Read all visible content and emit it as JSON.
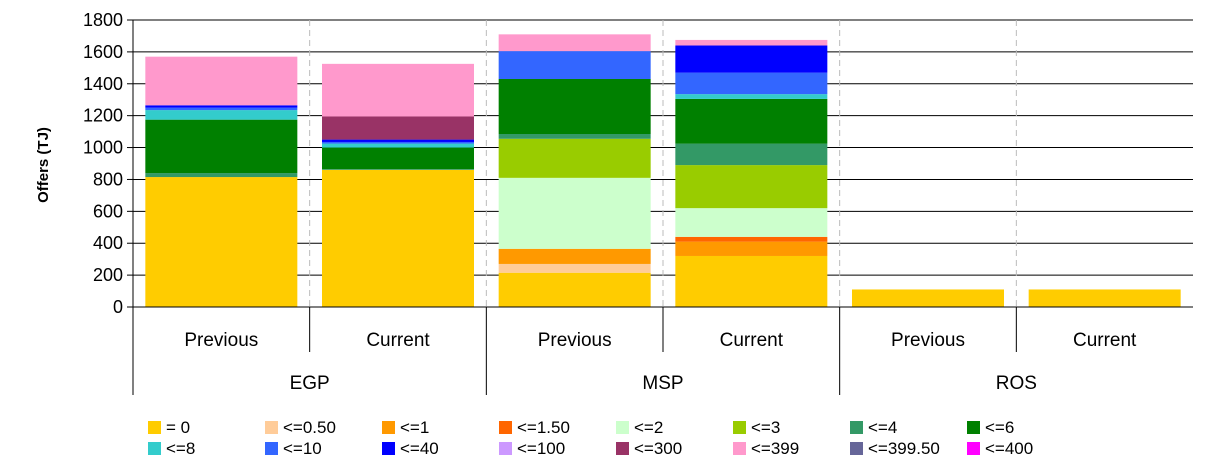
{
  "chart_data": {
    "type": "bar",
    "stacked": true,
    "ylabel": "Offers (TJ)",
    "xlabel": "",
    "ylim": [
      0,
      1800
    ],
    "yticks": [
      0,
      200,
      400,
      600,
      800,
      1000,
      1200,
      1400,
      1600,
      1800
    ],
    "grid": true,
    "legend_position": "bottom",
    "groups": [
      "EGP",
      "MSP",
      "ROS"
    ],
    "categories": [
      "Previous",
      "Current",
      "Previous",
      "Current",
      "Previous",
      "Current"
    ],
    "category_group": [
      0,
      0,
      1,
      1,
      2,
      2
    ],
    "series": [
      {
        "name": "= 0",
        "color": "#FFCC00",
        "values": [
          815,
          860,
          215,
          320,
          110,
          110
        ]
      },
      {
        "name": "<=0.50",
        "color": "#FFCC99",
        "values": [
          0,
          0,
          55,
          0,
          0,
          0
        ]
      },
      {
        "name": "<=1",
        "color": "#FF9900",
        "values": [
          0,
          0,
          95,
          90,
          0,
          0
        ]
      },
      {
        "name": "<=1.50",
        "color": "#FF6600",
        "values": [
          0,
          0,
          0,
          30,
          0,
          0
        ]
      },
      {
        "name": "<=2",
        "color": "#CCFFCC",
        "values": [
          0,
          0,
          445,
          180,
          0,
          0
        ]
      },
      {
        "name": "<=3",
        "color": "#99CC00",
        "values": [
          0,
          0,
          245,
          270,
          0,
          0
        ]
      },
      {
        "name": "<=4",
        "color": "#339966",
        "values": [
          25,
          5,
          30,
          135,
          0,
          0
        ]
      },
      {
        "name": "<=6",
        "color": "#008000",
        "values": [
          335,
          135,
          345,
          280,
          0,
          0
        ]
      },
      {
        "name": "<=8",
        "color": "#33CCCC",
        "values": [
          60,
          25,
          0,
          30,
          0,
          0
        ]
      },
      {
        "name": "<=10",
        "color": "#3366FF",
        "values": [
          15,
          10,
          175,
          135,
          0,
          0
        ]
      },
      {
        "name": "<=40",
        "color": "#0000FF",
        "values": [
          15,
          15,
          0,
          170,
          0,
          0
        ]
      },
      {
        "name": "<=100",
        "color": "#CC99FF",
        "values": [
          0,
          0,
          0,
          0,
          0,
          0
        ]
      },
      {
        "name": "<=300",
        "color": "#993366",
        "values": [
          0,
          145,
          0,
          0,
          0,
          0
        ]
      },
      {
        "name": "<=399",
        "color": "#FF99CC",
        "values": [
          305,
          330,
          105,
          35,
          0,
          0
        ]
      },
      {
        "name": "<=399.50",
        "color": "#666699",
        "values": [
          0,
          0,
          0,
          0,
          0,
          0
        ]
      },
      {
        "name": "<=400",
        "color": "#FF00FF",
        "values": [
          0,
          0,
          0,
          0,
          0,
          0
        ]
      }
    ]
  }
}
